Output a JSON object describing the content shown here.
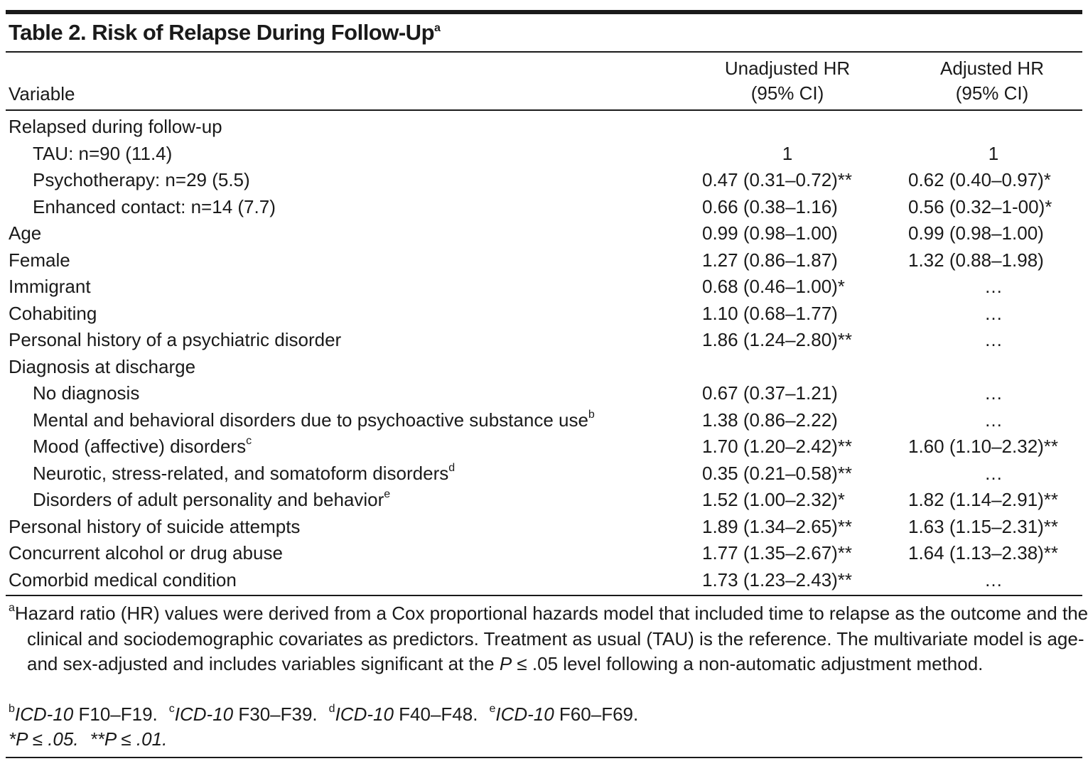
{
  "title": "Table 2. Risk of Relapse During Follow-Up",
  "title_sup": "a",
  "header": {
    "variable": "Variable",
    "unadjusted": [
      "Unadjusted HR",
      "(95% CI)"
    ],
    "adjusted": [
      "Adjusted HR",
      "(95% CI)"
    ]
  },
  "rows": [
    {
      "label": "Relapsed during follow-up",
      "children": [
        {
          "label": "TAU: n=90 (11.4)",
          "unadjusted": "1",
          "adjusted": "1"
        },
        {
          "label": "Psychotherapy: n=29 (5.5)",
          "unadjusted": "0.47 (0.31–0.72)**",
          "adjusted": "0.62 (0.40–0.97)*"
        },
        {
          "label": "Enhanced contact: n=14 (7.7)",
          "unadjusted": "0.66 (0.38–1.16)",
          "adjusted": "0.56 (0.32–1-00)*"
        }
      ]
    },
    {
      "label": "Age",
      "unadjusted": "0.99 (0.98–1.00)",
      "adjusted": "0.99 (0.98–1.00)"
    },
    {
      "label": "Female",
      "unadjusted": "1.27 (0.86–1.87)",
      "adjusted": "1.32 (0.88–1.98)"
    },
    {
      "label": "Immigrant",
      "unadjusted": "0.68 (0.46–1.00)*",
      "adjusted": "…"
    },
    {
      "label": "Cohabiting",
      "unadjusted": "1.10 (0.68–1.77)",
      "adjusted": "…"
    },
    {
      "label": "Personal history of a psychiatric disorder",
      "unadjusted": "1.86 (1.24–2.80)**",
      "adjusted": "…"
    },
    {
      "label": "Diagnosis at discharge",
      "children": [
        {
          "label": "No diagnosis",
          "unadjusted": "0.67 (0.37–1.21)",
          "adjusted": "…"
        },
        {
          "label": "Mental and behavioral disorders due to psychoactive substance use",
          "sup": "b",
          "unadjusted": "1.38 (0.86–2.22)",
          "adjusted": "…"
        },
        {
          "label": "Mood (affective) disorders",
          "sup": "c",
          "unadjusted": "1.70 (1.20–2.42)**",
          "adjusted": "1.60 (1.10–2.32)**"
        },
        {
          "label": "Neurotic, stress-related, and somatoform disorders",
          "sup": "d",
          "unadjusted": "0.35 (0.21–0.58)**",
          "adjusted": "…"
        },
        {
          "label": "Disorders of adult personality and behavior",
          "sup": "e",
          "unadjusted": "1.52 (1.00–2.32)*",
          "adjusted": "1.82 (1.14–2.91)**"
        }
      ]
    },
    {
      "label": "Personal history of suicide attempts",
      "unadjusted": "1.89 (1.34–2.65)**",
      "adjusted": "1.63 (1.15–2.31)**"
    },
    {
      "label": "Concurrent alcohol or drug abuse",
      "unadjusted": "1.77 (1.35–2.67)**",
      "adjusted": "1.64 (1.13–2.38)**"
    },
    {
      "label": "Comorbid medical condition",
      "unadjusted": "1.73 (1.23–2.43)**",
      "adjusted": "…"
    }
  ],
  "footnotes": [
    [
      {
        "mark": "a",
        "parts": [
          {
            "text": "Hazard ratio (HR) values were derived from a Cox proportional hazards model that included time to relapse as the outcome and the clinical and sociodemographic covariates as predictors. Treatment as usual (TAU) is the reference. The multivariate model is age- and sex-adjusted and includes variables significant at the "
          },
          {
            "text": "P",
            "italic": true
          },
          {
            "text": " ≤ .05 level following a non-automatic adjustment method."
          }
        ]
      }
    ],
    [
      {
        "mark": "b",
        "parts": [
          {
            "text": "ICD-10",
            "italic": true
          },
          {
            "text": " F10–F19."
          }
        ]
      },
      {
        "mark": "c",
        "parts": [
          {
            "text": "ICD-10",
            "italic": true
          },
          {
            "text": " F30–F39."
          }
        ]
      },
      {
        "mark": "d",
        "parts": [
          {
            "text": "ICD-10",
            "italic": true
          },
          {
            "text": " F40–F48."
          }
        ]
      },
      {
        "mark": "e",
        "parts": [
          {
            "text": "ICD-10",
            "italic": true
          },
          {
            "text": " F60–F69."
          }
        ]
      }
    ],
    [
      {
        "parts": [
          {
            "text": "*P ≤ .05.",
            "italic": true
          }
        ]
      },
      {
        "parts": [
          {
            "text": "**P ≤ .01.",
            "italic": true
          }
        ]
      }
    ]
  ]
}
